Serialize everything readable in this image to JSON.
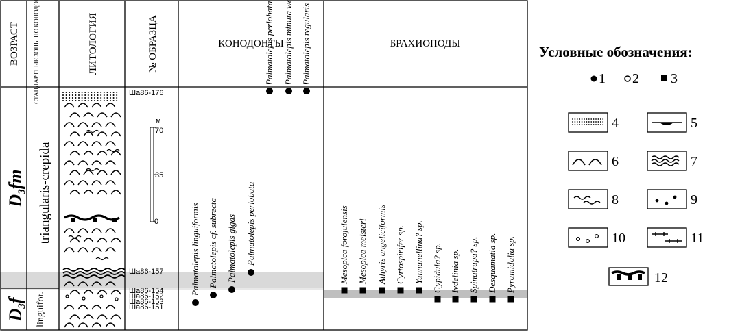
{
  "headers": {
    "age": "ВОЗРАСТ",
    "zones": "СТАНДАРТНЫЕ ЗОНЫ ПО КОНОДОНТАМ",
    "lithology": "ЛИТОЛОГИЯ",
    "sample_no": "№ ОБРАЗЦА",
    "conodonts": "КОНОДОНТЫ",
    "brachiopods": "БРАХИОПОДЫ"
  },
  "stages": {
    "upper": "D3fm",
    "lower": "D3f"
  },
  "zones": {
    "upper": "triangularis-crepida",
    "lower": "linguifor."
  },
  "samples": [
    "Ша86-176",
    "Ша86-157",
    "Ша86-154",
    "Ша86-152",
    "Ша86-153",
    "Ша86-151"
  ],
  "scale": {
    "unit": "м",
    "ticks": [
      "70",
      "35",
      "0"
    ]
  },
  "conodonts": [
    {
      "name": "Palmatolepis linguiformis",
      "symbol": "dot"
    },
    {
      "name": "Palmatolepis cf. subrecta",
      "symbol": "dot"
    },
    {
      "name": "Palmatolepis gigas",
      "symbol": "dot"
    },
    {
      "name": "Palmatolepis perlobata",
      "symbol": "dot"
    },
    {
      "name": "Palmatolepis perlobata cf. shindewolfi",
      "symbol": "dot"
    },
    {
      "name": "Palmatolepis minuta wolskae",
      "symbol": "dot"
    },
    {
      "name": "Palmatolepis regularis",
      "symbol": "dot"
    }
  ],
  "brachiopods": [
    {
      "name": "Mesoplca forojulensis",
      "symbol": "square"
    },
    {
      "name": "Mesoplca meisteri",
      "symbol": "square"
    },
    {
      "name": "Athyris angeliciformis",
      "symbol": "square"
    },
    {
      "name": "Cyrtospirifer sp.",
      "symbol": "square"
    },
    {
      "name": "Yunnanellina? sp.",
      "symbol": "square"
    },
    {
      "name": "Gypidula? sp.",
      "symbol": "square"
    },
    {
      "name": "Ivdelinia sp.",
      "symbol": "square"
    },
    {
      "name": "Spinatrupa? sp.",
      "symbol": "square"
    },
    {
      "name": "Desquamatia sp.",
      "symbol": "square"
    },
    {
      "name": "Pyramidalia sp.",
      "symbol": "square"
    }
  ],
  "legend": {
    "title": "Условные обозначения:",
    "items": [
      "1",
      "2",
      "3",
      "4",
      "5",
      "6",
      "7",
      "8",
      "9",
      "10",
      "11",
      "12"
    ]
  }
}
